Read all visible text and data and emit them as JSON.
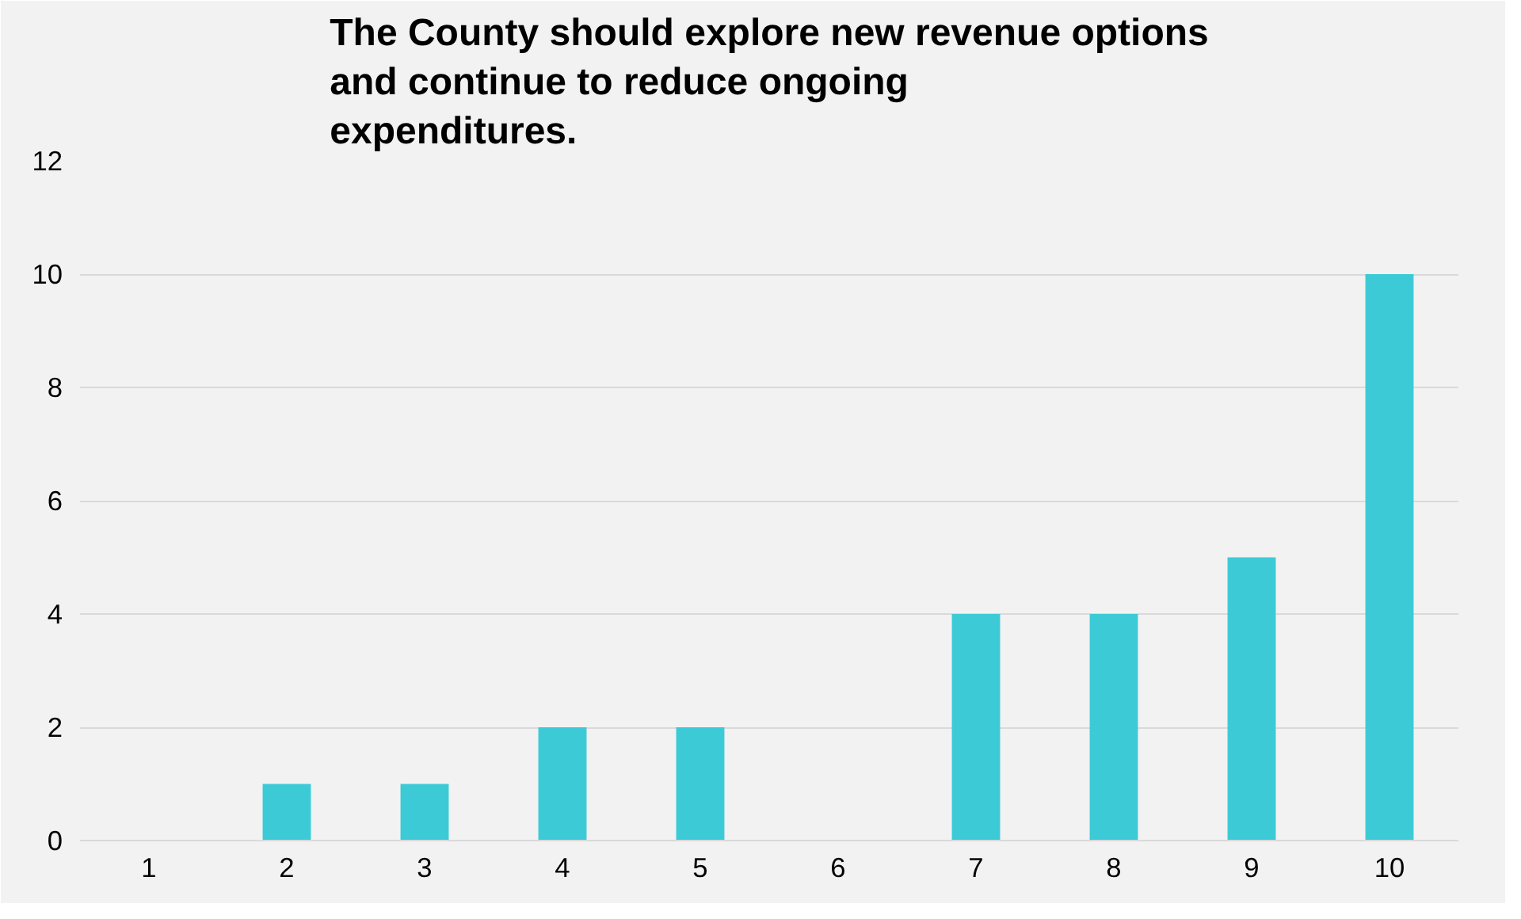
{
  "chart_data": {
    "type": "bar",
    "title": "The County should explore new revenue options\nand continue to reduce ongoing\nexpenditures.",
    "categories": [
      "1",
      "2",
      "3",
      "4",
      "5",
      "6",
      "7",
      "8",
      "9",
      "10"
    ],
    "values": [
      0,
      1,
      1,
      2,
      2,
      0,
      4,
      4,
      5,
      10
    ],
    "color": "#3ccbd6",
    "ylim": [
      0,
      12
    ],
    "yticks": [
      0,
      2,
      4,
      6,
      8,
      10,
      12
    ],
    "grid": "y"
  }
}
